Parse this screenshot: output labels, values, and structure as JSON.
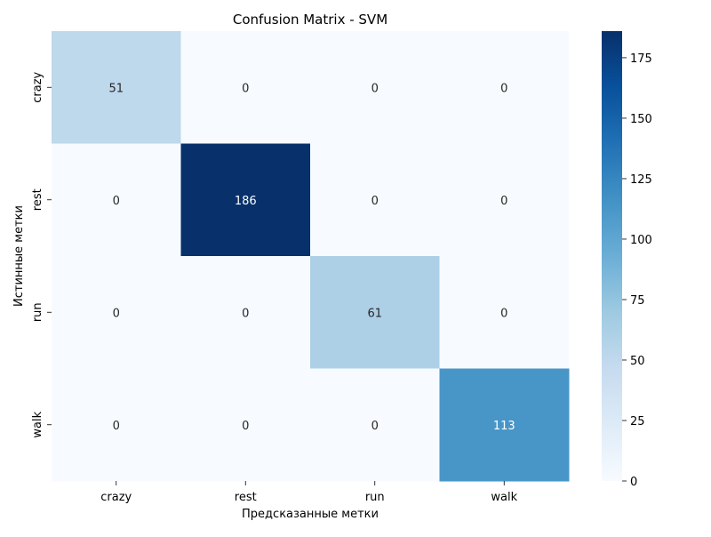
{
  "chart_data": {
    "type": "heatmap",
    "title": "Confusion Matrix - SVM",
    "xlabel": "Предсказанные метки",
    "ylabel": "Истинные метки",
    "x_categories": [
      "crazy",
      "rest",
      "run",
      "walk"
    ],
    "y_categories": [
      "crazy",
      "rest",
      "run",
      "walk"
    ],
    "values": [
      [
        51,
        0,
        0,
        0
      ],
      [
        0,
        186,
        0,
        0
      ],
      [
        0,
        0,
        61,
        0
      ],
      [
        0,
        0,
        0,
        113
      ]
    ],
    "colormap": "Blues",
    "vmin": 0,
    "vmax": 186,
    "colorbar_ticks": [
      0,
      25,
      50,
      75,
      100,
      125,
      150,
      175
    ],
    "colorbar_tick_labels": [
      "0",
      "25",
      "50",
      "75",
      "100",
      "125",
      "150",
      "175"
    ],
    "annotate": true
  },
  "colors": {
    "cmap_stops": [
      "#f7fbff",
      "#deebf7",
      "#c6dbef",
      "#9ecae1",
      "#6baed6",
      "#4292c6",
      "#2171b5",
      "#08519c",
      "#08306b"
    ],
    "text_dark": "#262626",
    "text_light": "#ffffff",
    "axis": "#000000"
  }
}
